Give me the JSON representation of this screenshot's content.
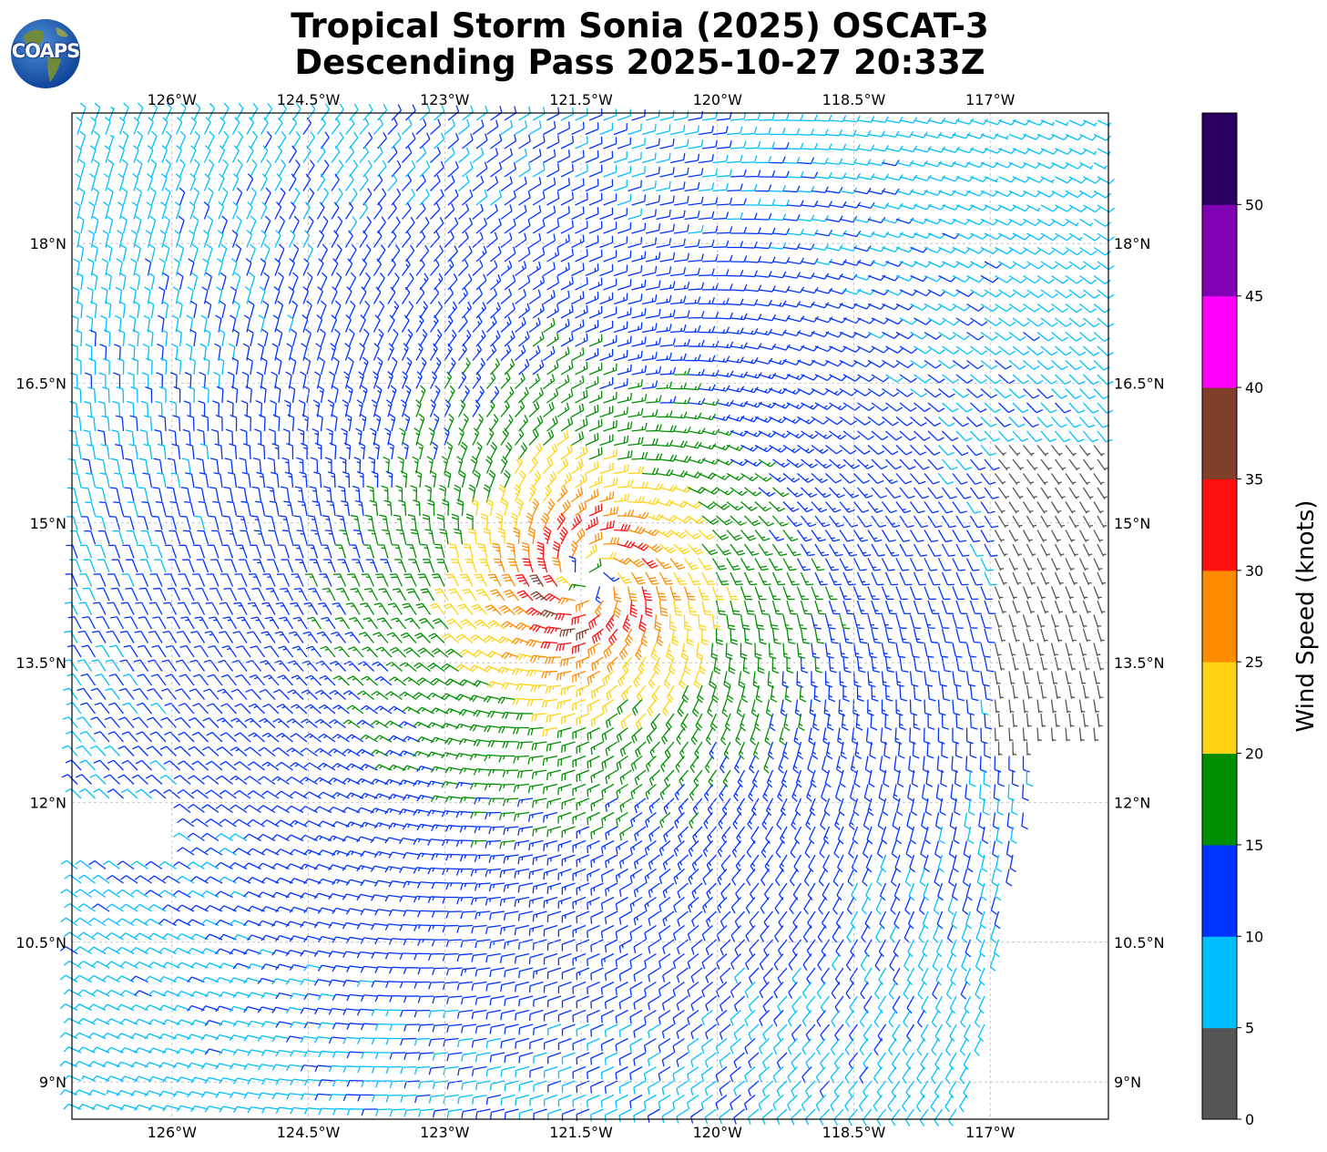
{
  "title": {
    "line1": "Tropical Storm Sonia (2025) OSCAT-3",
    "line2": "Descending Pass 2025-10-27 20:33Z"
  },
  "logo": {
    "text": "COAPS",
    "icon": "globe-icon"
  },
  "map": {
    "lon_range": [
      -127.1,
      -115.7
    ],
    "lat_range": [
      8.6,
      19.4
    ],
    "lon_ticks": [
      "126°W",
      "124.5°W",
      "123°W",
      "121.5°W",
      "120°W",
      "118.5°W",
      "117°W"
    ],
    "lon_tick_values": [
      -126,
      -124.5,
      -123,
      -121.5,
      -120,
      -118.5,
      -117
    ],
    "lat_ticks": [
      "18°N",
      "16.5°N",
      "15°N",
      "13.5°N",
      "12°N",
      "10.5°N",
      "9°N"
    ],
    "lat_tick_values": [
      18,
      16.5,
      15,
      13.5,
      12,
      10.5,
      9
    ],
    "grid": true,
    "storm_center": {
      "lon": -121.4,
      "lat": 14.4
    },
    "max_wind_knots": 33
  },
  "colorbar": {
    "label": "Wind Speed (knots)",
    "tick_labels": [
      "0",
      "5",
      "10",
      "15",
      "20",
      "25",
      "30",
      "35",
      "40",
      "45",
      "50"
    ],
    "bins": [
      {
        "min": 0,
        "max": 5,
        "color": "#555555"
      },
      {
        "min": 5,
        "max": 10,
        "color": "#00bfff"
      },
      {
        "min": 10,
        "max": 15,
        "color": "#0033ff"
      },
      {
        "min": 15,
        "max": 20,
        "color": "#008f00"
      },
      {
        "min": 20,
        "max": 25,
        "color": "#ffd314"
      },
      {
        "min": 25,
        "max": 30,
        "color": "#ff8c00"
      },
      {
        "min": 30,
        "max": 35,
        "color": "#ff0f0f"
      },
      {
        "min": 35,
        "max": 40,
        "color": "#7f3f2a"
      },
      {
        "min": 40,
        "max": 45,
        "color": "#ff00ff"
      },
      {
        "min": 45,
        "max": 50,
        "color": "#8000b4"
      },
      {
        "min": 50,
        "max": 55,
        "color": "#2b0060"
      }
    ]
  }
}
